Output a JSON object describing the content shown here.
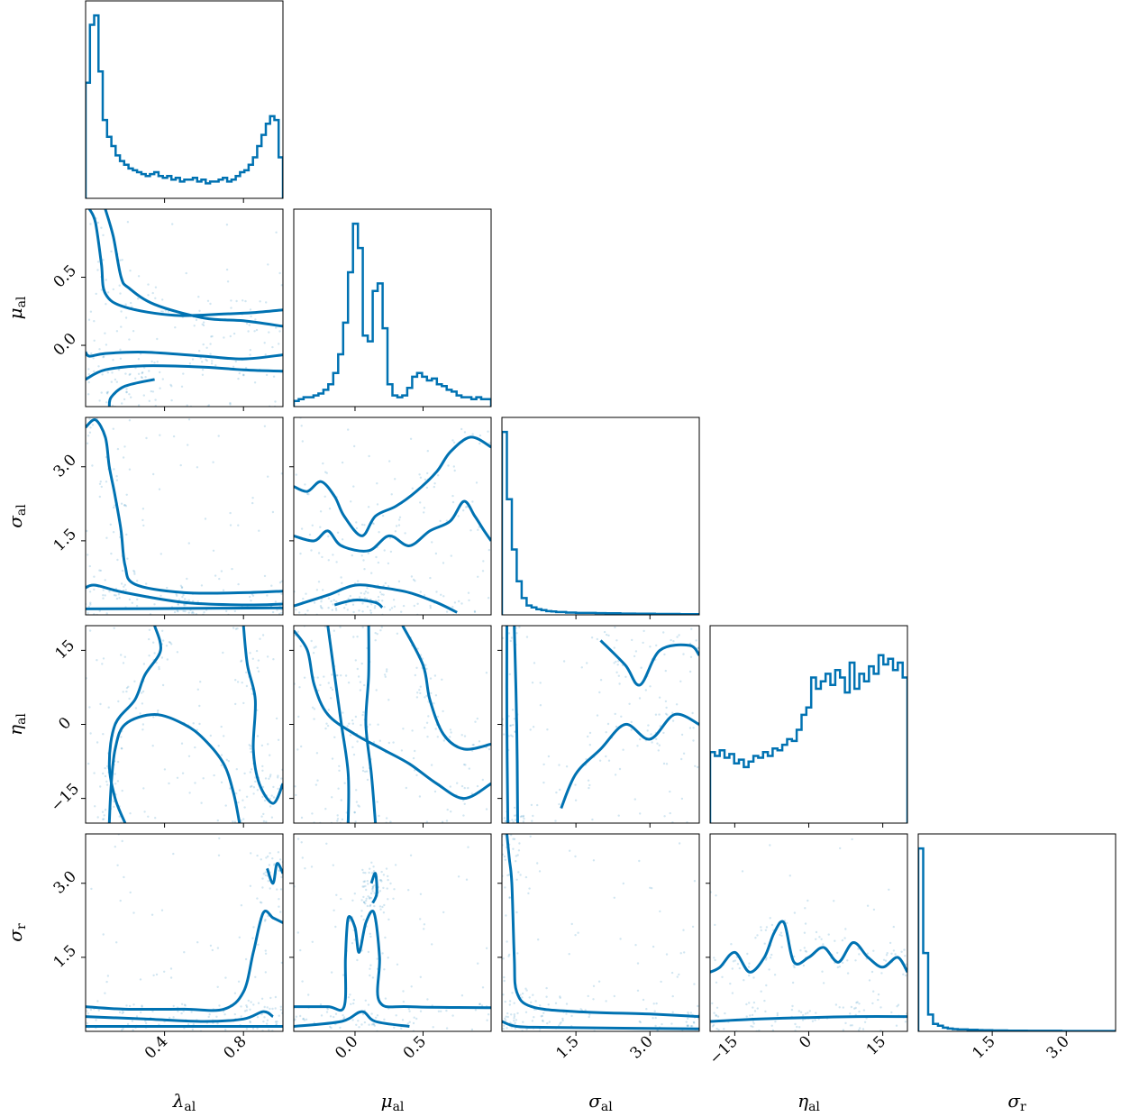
{
  "chart_data": {
    "type": "scatter",
    "title": "",
    "color": "#0072B2",
    "parameters": [
      {
        "symbol": "λ",
        "sub": "al",
        "range": [
          0.0,
          1.0
        ],
        "ticks": [
          0.4,
          0.8
        ],
        "tick_labels": [
          "0.4",
          "0.8"
        ]
      },
      {
        "symbol": "μ",
        "sub": "al",
        "range": [
          -0.45,
          1.0
        ],
        "ticks": [
          0.0,
          0.5
        ],
        "tick_labels": [
          "0.0",
          "0.5"
        ]
      },
      {
        "symbol": "σ",
        "sub": "al",
        "range": [
          0.0,
          4.0
        ],
        "ticks": [
          1.5,
          3.0
        ],
        "tick_labels": [
          "1.5",
          "3.0"
        ]
      },
      {
        "symbol": "η",
        "sub": "al",
        "range": [
          -20,
          20
        ],
        "ticks": [
          -15,
          0,
          15
        ],
        "tick_labels": [
          "−15",
          "0",
          "15"
        ]
      },
      {
        "symbol": "σ",
        "sub": "r",
        "range": [
          0.0,
          4.0
        ],
        "ticks": [
          1.5,
          3.0
        ],
        "tick_labels": [
          "1.5",
          "3.0"
        ]
      }
    ],
    "histograms": [
      [
        0.62,
        0.93,
        0.98,
        0.68,
        0.42,
        0.33,
        0.28,
        0.23,
        0.2,
        0.18,
        0.16,
        0.15,
        0.14,
        0.13,
        0.12,
        0.13,
        0.14,
        0.12,
        0.11,
        0.12,
        0.1,
        0.11,
        0.09,
        0.1,
        0.1,
        0.11,
        0.09,
        0.1,
        0.08,
        0.09,
        0.09,
        0.1,
        0.11,
        0.09,
        0.1,
        0.12,
        0.14,
        0.15,
        0.18,
        0.22,
        0.28,
        0.34,
        0.4,
        0.44,
        0.42,
        0.22
      ],
      [
        0.03,
        0.04,
        0.05,
        0.05,
        0.06,
        0.07,
        0.09,
        0.12,
        0.18,
        0.28,
        0.45,
        0.72,
        0.98,
        0.85,
        0.38,
        0.35,
        0.62,
        0.66,
        0.42,
        0.12,
        0.06,
        0.05,
        0.06,
        0.1,
        0.16,
        0.18,
        0.16,
        0.14,
        0.15,
        0.12,
        0.11,
        0.09,
        0.08,
        0.06,
        0.05,
        0.05,
        0.04,
        0.05,
        0.04,
        0.04
      ],
      [
        0.98,
        0.62,
        0.35,
        0.18,
        0.09,
        0.05,
        0.04,
        0.03,
        0.025,
        0.02,
        0.018,
        0.015,
        0.015,
        0.012,
        0.012,
        0.01,
        0.01,
        0.01,
        0.01,
        0.009,
        0.009,
        0.008,
        0.008,
        0.008,
        0.007,
        0.007,
        0.007,
        0.006,
        0.006,
        0.006,
        0.006,
        0.005,
        0.005,
        0.005,
        0.005,
        0.005,
        0.004,
        0.004,
        0.004,
        0.004
      ],
      [
        0.38,
        0.36,
        0.39,
        0.35,
        0.37,
        0.32,
        0.34,
        0.3,
        0.33,
        0.36,
        0.35,
        0.38,
        0.36,
        0.4,
        0.39,
        0.42,
        0.45,
        0.44,
        0.5,
        0.58,
        0.62,
        0.78,
        0.72,
        0.76,
        0.8,
        0.74,
        0.82,
        0.78,
        0.7,
        0.86,
        0.72,
        0.8,
        0.76,
        0.84,
        0.8,
        0.9,
        0.85,
        0.88,
        0.82,
        0.86,
        0.78
      ],
      [
        0.98,
        0.42,
        0.09,
        0.04,
        0.03,
        0.02,
        0.015,
        0.012,
        0.01,
        0.01,
        0.008,
        0.008,
        0.007,
        0.006,
        0.006,
        0.005,
        0.005,
        0.005,
        0.004,
        0.004,
        0.004,
        0.004,
        0.003,
        0.003,
        0.003,
        0.003,
        0.003,
        0.003,
        0.003,
        0.002,
        0.002,
        0.002,
        0.002,
        0.002,
        0.002,
        0.002,
        0.002,
        0.002,
        0.002,
        0.002
      ]
    ],
    "contours": {
      "1-0": [
        [
          [
            0.02,
            1.0
          ],
          [
            0.05,
            0.9
          ],
          [
            0.08,
            0.6
          ],
          [
            0.1,
            0.38
          ],
          [
            0.2,
            0.28
          ],
          [
            0.45,
            0.22
          ],
          [
            0.7,
            0.23
          ],
          [
            0.85,
            0.24
          ],
          [
            1.0,
            0.26
          ]
        ],
        [
          [
            0.1,
            1.0
          ],
          [
            0.14,
            0.8
          ],
          [
            0.18,
            0.5
          ],
          [
            0.22,
            0.42
          ],
          [
            0.35,
            0.3
          ],
          [
            0.6,
            0.2
          ],
          [
            0.8,
            0.18
          ],
          [
            1.0,
            0.14
          ]
        ],
        [
          [
            0.0,
            -0.05
          ],
          [
            0.02,
            -0.08
          ],
          [
            0.1,
            -0.06
          ],
          [
            0.3,
            -0.05
          ],
          [
            0.6,
            -0.08
          ],
          [
            0.8,
            -0.1
          ],
          [
            1.0,
            -0.07
          ]
        ],
        [
          [
            0.0,
            -0.25
          ],
          [
            0.1,
            -0.18
          ],
          [
            0.3,
            -0.15
          ],
          [
            0.6,
            -0.16
          ],
          [
            0.8,
            -0.18
          ],
          [
            1.0,
            -0.19
          ]
        ],
        [
          [
            0.12,
            -0.45
          ],
          [
            0.13,
            -0.38
          ],
          [
            0.2,
            -0.3
          ],
          [
            0.35,
            -0.25
          ]
        ]
      ],
      "2-0": [
        [
          [
            0.0,
            3.8
          ],
          [
            0.05,
            3.95
          ],
          [
            0.1,
            3.6
          ],
          [
            0.12,
            3.0
          ],
          [
            0.15,
            2.4
          ],
          [
            0.18,
            1.7
          ],
          [
            0.2,
            1.0
          ],
          [
            0.25,
            0.62
          ],
          [
            0.5,
            0.45
          ],
          [
            0.8,
            0.45
          ],
          [
            1.0,
            0.48
          ]
        ],
        [
          [
            0.0,
            0.55
          ],
          [
            0.05,
            0.6
          ],
          [
            0.2,
            0.45
          ],
          [
            0.5,
            0.25
          ],
          [
            0.8,
            0.2
          ],
          [
            1.0,
            0.22
          ]
        ],
        [
          [
            0.0,
            0.12
          ],
          [
            0.5,
            0.13
          ],
          [
            1.0,
            0.14
          ]
        ]
      ],
      "2-1": [
        [
          [
            -0.45,
            2.6
          ],
          [
            -0.35,
            2.5
          ],
          [
            -0.25,
            2.7
          ],
          [
            -0.15,
            2.4
          ],
          [
            -0.08,
            2.0
          ],
          [
            0.05,
            1.6
          ],
          [
            0.15,
            2.0
          ],
          [
            0.3,
            2.2
          ],
          [
            0.45,
            2.5
          ],
          [
            0.6,
            2.9
          ],
          [
            0.7,
            3.3
          ],
          [
            0.85,
            3.6
          ],
          [
            1.0,
            3.4
          ]
        ],
        [
          [
            -0.45,
            1.6
          ],
          [
            -0.3,
            1.5
          ],
          [
            -0.2,
            1.7
          ],
          [
            -0.1,
            1.4
          ],
          [
            0.1,
            1.3
          ],
          [
            0.25,
            1.6
          ],
          [
            0.4,
            1.4
          ],
          [
            0.55,
            1.7
          ],
          [
            0.7,
            1.9
          ],
          [
            0.8,
            2.3
          ],
          [
            0.88,
            2.0
          ],
          [
            0.95,
            1.7
          ],
          [
            1.0,
            1.5
          ]
        ],
        [
          [
            -0.45,
            0.18
          ],
          [
            -0.2,
            0.4
          ],
          [
            0.0,
            0.6
          ],
          [
            0.2,
            0.55
          ],
          [
            0.4,
            0.45
          ],
          [
            0.6,
            0.25
          ],
          [
            0.75,
            0.05
          ]
        ],
        [
          [
            -0.15,
            0.2
          ],
          [
            0.0,
            0.3
          ],
          [
            0.15,
            0.25
          ],
          [
            0.2,
            0.15
          ]
        ]
      ],
      "3-0": [
        [
          [
            0.12,
            -20
          ],
          [
            0.13,
            -12
          ],
          [
            0.15,
            -5
          ],
          [
            0.2,
            0
          ],
          [
            0.35,
            2
          ],
          [
            0.5,
            0
          ],
          [
            0.6,
            -3
          ],
          [
            0.7,
            -8
          ],
          [
            0.75,
            -14
          ],
          [
            0.78,
            -20
          ]
        ],
        [
          [
            0.35,
            20
          ],
          [
            0.38,
            15
          ],
          [
            0.3,
            10
          ],
          [
            0.25,
            5
          ],
          [
            0.15,
            0
          ],
          [
            0.12,
            -8
          ],
          [
            0.15,
            -15
          ],
          [
            0.2,
            -20
          ]
        ],
        [
          [
            0.8,
            20
          ],
          [
            0.82,
            12
          ],
          [
            0.86,
            5
          ],
          [
            0.85,
            -5
          ],
          [
            0.88,
            -12
          ],
          [
            0.95,
            -16
          ],
          [
            1.0,
            -12
          ]
        ]
      ],
      "3-1": [
        [
          [
            -0.45,
            19
          ],
          [
            -0.35,
            15
          ],
          [
            -0.3,
            8
          ],
          [
            -0.2,
            2
          ],
          [
            0.0,
            -2
          ],
          [
            0.2,
            -5
          ],
          [
            0.4,
            -8
          ],
          [
            0.6,
            -12
          ],
          [
            0.8,
            -15
          ],
          [
            1.0,
            -12
          ]
        ],
        [
          [
            -0.2,
            20
          ],
          [
            -0.15,
            10
          ],
          [
            -0.1,
            0
          ],
          [
            -0.05,
            -10
          ],
          [
            -0.05,
            -20
          ]
        ],
        [
          [
            0.1,
            20
          ],
          [
            0.1,
            10
          ],
          [
            0.08,
            0
          ],
          [
            0.12,
            -10
          ],
          [
            0.15,
            -20
          ]
        ],
        [
          [
            0.35,
            20
          ],
          [
            0.5,
            12
          ],
          [
            0.55,
            5
          ],
          [
            0.65,
            -2
          ],
          [
            0.8,
            -5
          ],
          [
            1.0,
            -4
          ]
        ]
      ],
      "3-2": [
        [
          [
            0.1,
            20
          ],
          [
            0.1,
            0
          ],
          [
            0.12,
            -20
          ]
        ],
        [
          [
            0.25,
            20
          ],
          [
            0.3,
            0
          ],
          [
            0.32,
            -20
          ]
        ],
        [
          [
            1.2,
            -17
          ],
          [
            1.5,
            -10
          ],
          [
            2.0,
            -5
          ],
          [
            2.5,
            0
          ],
          [
            3.0,
            -3
          ],
          [
            3.5,
            2
          ],
          [
            4.0,
            0
          ]
        ],
        [
          [
            2.0,
            17
          ],
          [
            2.5,
            12
          ],
          [
            2.8,
            8
          ],
          [
            3.2,
            15
          ],
          [
            3.8,
            16
          ],
          [
            4.0,
            14
          ]
        ]
      ],
      "4-0": [
        [
          [
            0.0,
            0.5
          ],
          [
            0.2,
            0.45
          ],
          [
            0.5,
            0.45
          ],
          [
            0.7,
            0.45
          ],
          [
            0.8,
            0.8
          ],
          [
            0.85,
            1.6
          ],
          [
            0.9,
            2.4
          ],
          [
            0.95,
            2.3
          ],
          [
            1.0,
            2.2
          ]
        ],
        [
          [
            0.0,
            0.3
          ],
          [
            0.3,
            0.25
          ],
          [
            0.6,
            0.2
          ],
          [
            0.8,
            0.25
          ],
          [
            0.9,
            0.4
          ],
          [
            0.95,
            0.3
          ]
        ],
        [
          [
            0.0,
            0.1
          ],
          [
            0.5,
            0.1
          ],
          [
            1.0,
            0.1
          ]
        ],
        [
          [
            0.92,
            3.3
          ],
          [
            0.95,
            3.0
          ],
          [
            0.97,
            3.4
          ],
          [
            1.0,
            3.2
          ]
        ]
      ],
      "4-1": [
        [
          [
            -0.45,
            0.5
          ],
          [
            -0.2,
            0.5
          ],
          [
            -0.08,
            0.5
          ],
          [
            -0.07,
            1.5
          ],
          [
            -0.05,
            2.3
          ],
          [
            0.0,
            2.1
          ],
          [
            0.03,
            1.6
          ],
          [
            0.08,
            2.2
          ],
          [
            0.14,
            2.4
          ],
          [
            0.18,
            1.5
          ],
          [
            0.18,
            0.6
          ],
          [
            0.4,
            0.5
          ],
          [
            1.0,
            0.48
          ]
        ],
        [
          [
            -0.45,
            0.1
          ],
          [
            -0.1,
            0.2
          ],
          [
            0.05,
            0.4
          ],
          [
            0.15,
            0.2
          ],
          [
            0.4,
            0.1
          ]
        ],
        [
          [
            0.12,
            3.0
          ],
          [
            0.15,
            3.2
          ],
          [
            0.16,
            2.8
          ],
          [
            0.13,
            2.6
          ]
        ]
      ],
      "4-2": [
        [
          [
            0.1,
            4.0
          ],
          [
            0.15,
            3.5
          ],
          [
            0.2,
            3.0
          ],
          [
            0.25,
            1.5
          ],
          [
            0.3,
            0.8
          ],
          [
            0.6,
            0.5
          ],
          [
            1.5,
            0.4
          ],
          [
            3.0,
            0.35
          ],
          [
            4.0,
            0.3
          ]
        ],
        [
          [
            0.0,
            0.2
          ],
          [
            0.3,
            0.1
          ],
          [
            1.0,
            0.08
          ],
          [
            4.0,
            0.05
          ]
        ]
      ],
      "4-3": [
        [
          [
            -20,
            1.2
          ],
          [
            -18,
            1.3
          ],
          [
            -15,
            1.6
          ],
          [
            -12,
            1.2
          ],
          [
            -9,
            1.5
          ],
          [
            -7,
            2.0
          ],
          [
            -5,
            2.2
          ],
          [
            -3,
            1.4
          ],
          [
            0,
            1.5
          ],
          [
            3,
            1.7
          ],
          [
            6,
            1.4
          ],
          [
            9,
            1.8
          ],
          [
            12,
            1.5
          ],
          [
            15,
            1.3
          ],
          [
            18,
            1.5
          ],
          [
            20,
            1.2
          ]
        ],
        [
          [
            -20,
            0.2
          ],
          [
            -10,
            0.25
          ],
          [
            0,
            0.28
          ],
          [
            10,
            0.3
          ],
          [
            20,
            0.3
          ]
        ]
      ]
    }
  }
}
